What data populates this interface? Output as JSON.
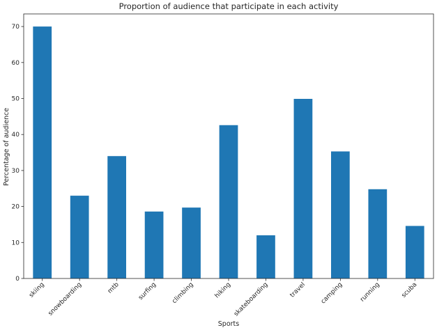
{
  "chart_data": {
    "type": "bar",
    "title": "Proportion of audience that participate in each activity",
    "xlabel": "Sports",
    "ylabel": "Percentage of audience",
    "categories": [
      "skiing",
      "snowboarding",
      "mtb",
      "surfing",
      "climbing",
      "hiking",
      "skateboarding",
      "travel",
      "camping",
      "running",
      "scuba"
    ],
    "values": [
      70.0,
      23.0,
      34.0,
      18.6,
      19.7,
      42.6,
      12.0,
      49.9,
      35.3,
      24.8,
      14.6
    ],
    "ylim": [
      0,
      73.5
    ],
    "yticks": [
      0,
      10,
      20,
      30,
      40,
      50,
      60,
      70
    ],
    "grid": false,
    "bar_color": "#1f77b4",
    "axis_color": "#262626"
  }
}
